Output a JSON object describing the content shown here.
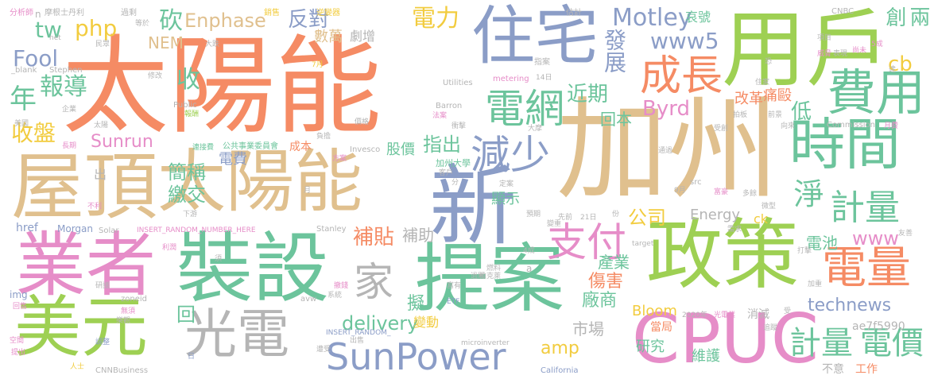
{
  "palette": {
    "orange": "#f58b64",
    "tan": "#e0c08e",
    "blue": "#8b9dc7",
    "green": "#6cc49c",
    "lime": "#9ed053",
    "pink": "#e68dc8",
    "gray": "#b5b5b5",
    "yellow": "#f2cc3f"
  },
  "words": [
    {
      "text": "太陽能",
      "color": "orange"
    },
    {
      "text": "加州",
      "color": "tan"
    },
    {
      "text": "用戶",
      "color": "lime"
    },
    {
      "text": "住宅",
      "color": "blue"
    },
    {
      "text": "屋頂",
      "color": "tan"
    },
    {
      "text": "太陽能",
      "color": "tan"
    },
    {
      "text": "新",
      "color": "blue"
    },
    {
      "text": "業者",
      "color": "pink"
    },
    {
      "text": "裝設",
      "color": "green"
    },
    {
      "text": "提案",
      "color": "green"
    },
    {
      "text": "政策",
      "color": "lime"
    },
    {
      "text": "美元",
      "color": "lime"
    },
    {
      "text": "光電",
      "color": "gray"
    },
    {
      "text": "CPUC",
      "color": "pink"
    },
    {
      "text": "時間",
      "color": "green"
    },
    {
      "text": "SunPower",
      "color": "blue"
    },
    {
      "text": "成長",
      "color": "orange"
    },
    {
      "text": "電網",
      "color": "green"
    },
    {
      "text": "減少",
      "color": "blue"
    },
    {
      "text": "費用",
      "color": "green"
    },
    {
      "text": "淨",
      "color": "green"
    },
    {
      "text": "計量",
      "color": "green"
    },
    {
      "text": "電量",
      "color": "orange"
    },
    {
      "text": "支付",
      "color": "pink"
    },
    {
      "text": "家",
      "color": "gray"
    },
    {
      "text": "計量",
      "color": "green"
    },
    {
      "text": "電價",
      "color": "green"
    },
    {
      "text": "年",
      "color": "green"
    },
    {
      "text": "報導",
      "color": "green"
    },
    {
      "text": "電力",
      "color": "yellow"
    },
    {
      "text": "Motley",
      "color": "blue"
    },
    {
      "text": "www5",
      "color": "blue"
    },
    {
      "text": "發展",
      "color": "blue"
    },
    {
      "text": "近期",
      "color": "green"
    },
    {
      "text": "回本",
      "color": "green"
    },
    {
      "text": "Byrd",
      "color": "pink"
    },
    {
      "text": "反對",
      "color": "blue"
    },
    {
      "text": "Enphase",
      "color": "tan"
    },
    {
      "text": "NEM",
      "color": "tan"
    },
    {
      "text": "php",
      "color": "yellow"
    },
    {
      "text": "tw",
      "color": "green"
    },
    {
      "text": "Fool",
      "color": "blue"
    },
    {
      "text": "收",
      "color": "green"
    },
    {
      "text": "砍",
      "color": "green"
    },
    {
      "text": "收盤",
      "color": "yellow"
    },
    {
      "text": "Sunrun",
      "color": "pink"
    },
    {
      "text": "簡稱",
      "color": "green"
    },
    {
      "text": "繳交",
      "color": "green"
    },
    {
      "text": "電費",
      "color": "blue"
    },
    {
      "text": "成本",
      "color": "orange"
    },
    {
      "text": "股價",
      "color": "green"
    },
    {
      "text": "指出",
      "color": "green"
    },
    {
      "text": "顯示",
      "color": "green"
    },
    {
      "text": "公司",
      "color": "yellow"
    },
    {
      "text": "Energy",
      "color": "gray"
    },
    {
      "text": "補貼",
      "color": "orange"
    },
    {
      "text": "補助",
      "color": "gray"
    },
    {
      "text": "產業",
      "color": "green"
    },
    {
      "text": "delivery",
      "color": "green"
    },
    {
      "text": "傷害",
      "color": "orange"
    },
    {
      "text": "廠商",
      "color": "green"
    },
    {
      "text": "市場",
      "color": "gray"
    },
    {
      "text": "amp",
      "color": "yellow"
    },
    {
      "text": "Bloom",
      "color": "yellow"
    },
    {
      "text": "當局",
      "color": "orange"
    },
    {
      "text": "研究",
      "color": "green"
    },
    {
      "text": "維護",
      "color": "green"
    },
    {
      "text": "technews",
      "color": "blue"
    },
    {
      "text": "www",
      "color": "pink"
    },
    {
      "text": "電池",
      "color": "green"
    },
    {
      "text": "ck",
      "color": "yellow"
    },
    {
      "text": "ae7f5990",
      "color": "gray"
    },
    {
      "text": "cb",
      "color": "yellow"
    },
    {
      "text": "創",
      "color": "green"
    },
    {
      "text": "兩",
      "color": "green"
    },
    {
      "text": "低",
      "color": "green"
    },
    {
      "text": "痛毆",
      "color": "orange"
    },
    {
      "text": "改革",
      "color": "orange"
    },
    {
      "text": "哀號",
      "color": "green"
    },
    {
      "text": "數萬",
      "color": "tan"
    },
    {
      "text": "劇增",
      "color": "gray"
    },
    {
      "text": "擬",
      "color": "green"
    },
    {
      "text": "變動",
      "color": "yellow"
    },
    {
      "text": "回",
      "color": "green"
    },
    {
      "text": "出",
      "color": "gray"
    },
    {
      "text": "消滅",
      "color": "gray"
    },
    {
      "text": "不意",
      "color": "gray"
    },
    {
      "text": "工作",
      "color": "orange"
    },
    {
      "text": "CNBC",
      "color": "gray"
    },
    {
      "text": "Commission",
      "color": "gray"
    },
    {
      "text": "Invesco",
      "color": "gray"
    },
    {
      "text": "Utilities",
      "color": "gray"
    },
    {
      "text": "Barron",
      "color": "gray"
    },
    {
      "text": "Stephen",
      "color": "gray"
    },
    {
      "text": "Public",
      "color": "gray"
    },
    {
      "text": "_blank",
      "color": "gray"
    },
    {
      "text": "href",
      "color": "blue"
    },
    {
      "text": "Morgan",
      "color": "blue"
    },
    {
      "text": "Solar",
      "color": "gray"
    },
    {
      "text": "Stanley",
      "color": "gray"
    },
    {
      "text": "INSERT_RANDOM_NUMBER_HERE",
      "color": "pink"
    },
    {
      "text": "INSERT_RANDOM_",
      "color": "blue"
    },
    {
      "text": "microinverter",
      "color": "gray"
    },
    {
      "text": "California",
      "color": "blue"
    },
    {
      "text": "CNNBusiness",
      "color": "gray"
    },
    {
      "text": "metering",
      "color": "pink"
    },
    {
      "text": "zoneid",
      "color": "gray"
    },
    {
      "text": "img",
      "color": "blue"
    },
    {
      "text": "target",
      "color": "gray"
    },
    {
      "text": "src",
      "color": "gray"
    },
    {
      "text": "avw",
      "color": "gray"
    },
    {
      "text": "net",
      "color": "gray"
    },
    {
      "text": "ETF",
      "color": "blue"
    },
    {
      "text": "a",
      "color": "gray"
    },
    {
      "text": "n",
      "color": "gray"
    },
    {
      "text": "2020年",
      "color": "gray"
    },
    {
      "text": "加州大學",
      "color": "green"
    },
    {
      "text": "公共事業委員會",
      "color": "green"
    },
    {
      "text": "連接費",
      "color": "green"
    },
    {
      "text": "摩根士丹利",
      "color": "gray"
    },
    {
      "text": "逆變器",
      "color": "yellow"
    },
    {
      "text": "柏克萊",
      "color": "gray"
    },
    {
      "text": "光電業",
      "color": "pink"
    },
    {
      "text": "估計",
      "color": "gray"
    },
    {
      "text": "指案",
      "color": "gray"
    },
    {
      "text": "分析師",
      "color": "pink"
    },
    {
      "text": "過剩",
      "color": "gray"
    },
    {
      "text": "銷售",
      "color": "yellow"
    },
    {
      "text": "等於",
      "color": "gray"
    },
    {
      "text": "民眾",
      "color": "gray"
    },
    {
      "text": "修改",
      "color": "gray"
    },
    {
      "text": "企業",
      "color": "gray"
    },
    {
      "text": "報酬",
      "color": "lime"
    },
    {
      "text": "美國",
      "color": "gray"
    },
    {
      "text": "太陽",
      "color": "gray"
    },
    {
      "text": "長期",
      "color": "pink"
    },
    {
      "text": "不利",
      "color": "pink"
    },
    {
      "text": "下游",
      "color": "gray"
    },
    {
      "text": "利潤",
      "color": "pink"
    },
    {
      "text": "研議",
      "color": "gray"
    },
    {
      "text": "回售",
      "color": "pink"
    },
    {
      "text": "無須",
      "color": "pink"
    },
    {
      "text": "樂觀",
      "color": "gray"
    },
    {
      "text": "空間",
      "color": "pink"
    },
    {
      "text": "調整",
      "color": "blue"
    },
    {
      "text": "提出",
      "color": "pink"
    },
    {
      "text": "人士",
      "color": "yellow"
    },
    {
      "text": "日",
      "color": "blue"
    },
    {
      "text": "遭受",
      "color": "gray"
    },
    {
      "text": "撤錢",
      "color": "pink"
    },
    {
      "text": "系統",
      "color": "gray"
    },
    {
      "text": "價格",
      "color": "gray"
    },
    {
      "text": "法案",
      "color": "pink"
    },
    {
      "text": "衝擊",
      "color": "gray"
    },
    {
      "text": "負擔",
      "color": "gray"
    },
    {
      "text": "方案",
      "color": "pink"
    },
    {
      "text": "客戶",
      "color": "gray"
    },
    {
      "text": "定案",
      "color": "gray"
    },
    {
      "text": "預期",
      "color": "gray"
    },
    {
      "text": "變重",
      "color": "gray"
    },
    {
      "text": "先前",
      "color": "gray"
    },
    {
      "text": "21日",
      "color": "gray"
    },
    {
      "text": "4成",
      "color": "gray"
    },
    {
      "text": "過關",
      "color": "gray"
    },
    {
      "text": "富有",
      "color": "gray"
    },
    {
      "text": "燃料",
      "color": "gray"
    },
    {
      "text": "須",
      "color": "gray"
    },
    {
      "text": "出售",
      "color": "gray"
    },
    {
      "text": "月",
      "color": "gray"
    },
    {
      "text": "份",
      "color": "gray"
    },
    {
      "text": "分",
      "color": "gray"
    },
    {
      "text": "恐",
      "color": "gray"
    },
    {
      "text": "尚未",
      "color": "pink"
    },
    {
      "text": "表現",
      "color": "gray"
    },
    {
      "text": "威脅",
      "color": "pink"
    },
    {
      "text": "項目",
      "color": "gray"
    },
    {
      "text": "5成",
      "color": "pink"
    },
    {
      "text": "大跌",
      "color": "gray"
    },
    {
      "text": "14日",
      "color": "gray"
    },
    {
      "text": "7月",
      "color": "yellow"
    },
    {
      "text": "大摩",
      "color": "gray"
    },
    {
      "text": "住家",
      "color": "gray"
    },
    {
      "text": "微型",
      "color": "gray"
    },
    {
      "text": "拍板",
      "color": "gray"
    },
    {
      "text": "前景",
      "color": "gray"
    },
    {
      "text": "受創",
      "color": "gray"
    },
    {
      "text": "通過",
      "color": "gray"
    },
    {
      "text": "9月",
      "color": "gray"
    },
    {
      "text": "富豪",
      "color": "pink"
    },
    {
      "text": "多餘",
      "color": "gray"
    },
    {
      "text": "需求",
      "color": "gray"
    },
    {
      "text": "打擊",
      "color": "gray"
    },
    {
      "text": "受",
      "color": "gray"
    },
    {
      "text": "加重",
      "color": "gray"
    },
    {
      "text": "追蹤",
      "color": "gray"
    },
    {
      "text": "友善",
      "color": "gray"
    },
    {
      "text": "向來",
      "color": "gray"
    },
    {
      "text": "達",
      "color": "gray"
    },
    {
      "text": "月費",
      "color": "pink"
    },
    {
      "text": "歸咎",
      "color": "gray"
    }
  ]
}
